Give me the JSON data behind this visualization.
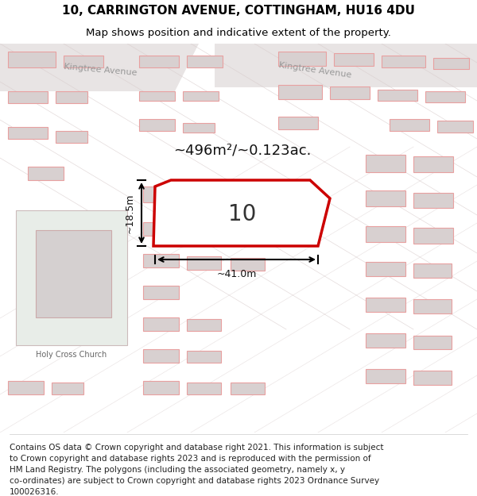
{
  "title_line1": "10, CARRINGTON AVENUE, COTTINGHAM, HU16 4DU",
  "title_line2": "Map shows position and indicative extent of the property.",
  "area_label": "~496m²/~0.123ac.",
  "property_number": "10",
  "width_label": "~41.0m",
  "height_label": "~18.5m",
  "street_label_left": "Kingtree Avenue",
  "street_label_right": "Kingtree Avenue",
  "church_label": "Holy Cross Church",
  "footer_lines": [
    "Contains OS data © Crown copyright and database right 2021. This information is subject",
    "to Crown copyright and database rights 2023 and is reproduced with the permission of",
    "HM Land Registry. The polygons (including the associated geometry, namely x, y",
    "co-ordinates) are subject to Crown copyright and database rights 2023 Ordnance Survey",
    "100026316."
  ],
  "map_bg": "#f2eeee",
  "building_fill": "#d8d0d0",
  "building_stroke": "#e8a0a0",
  "property_fill": "#ffffff",
  "property_stroke": "#cc0000",
  "title_fontsize": 11,
  "footer_fontsize": 7.5
}
